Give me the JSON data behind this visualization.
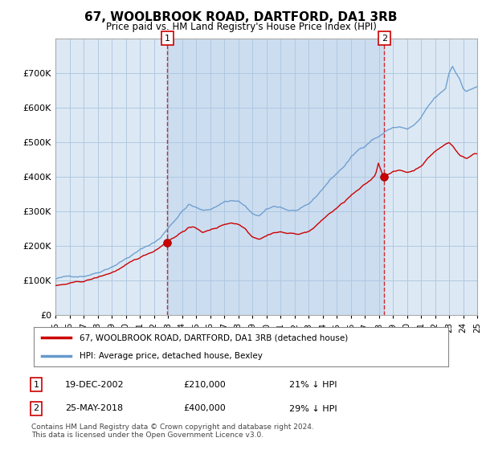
{
  "title": "67, WOOLBROOK ROAD, DARTFORD, DA1 3RB",
  "subtitle": "Price paid vs. HM Land Registry's House Price Index (HPI)",
  "ylim": [
    0,
    800000
  ],
  "yticks": [
    0,
    100000,
    200000,
    300000,
    400000,
    500000,
    600000,
    700000
  ],
  "background_color": "#ffffff",
  "plot_bg_color": "#dce9f5",
  "grid_color": "#b0c8e0",
  "sale1_date_num": 2002.97,
  "sale1_price": 210000,
  "sale2_date_num": 2018.39,
  "sale2_price": 400000,
  "red_line_color": "#cc0000",
  "blue_line_color": "#6699cc",
  "legend_line1": "67, WOOLBROOK ROAD, DARTFORD, DA1 3RB (detached house)",
  "legend_line2": "HPI: Average price, detached house, Bexley",
  "annotation1_date": "19-DEC-2002",
  "annotation1_price": "£210,000",
  "annotation1_hpi": "21% ↓ HPI",
  "annotation2_date": "25-MAY-2018",
  "annotation2_price": "£400,000",
  "annotation2_hpi": "29% ↓ HPI",
  "footer": "Contains HM Land Registry data © Crown copyright and database right 2024.\nThis data is licensed under the Open Government Licence v3.0.",
  "xmin": 1995,
  "xmax": 2025,
  "shaded_region_color": "#ccddf0"
}
